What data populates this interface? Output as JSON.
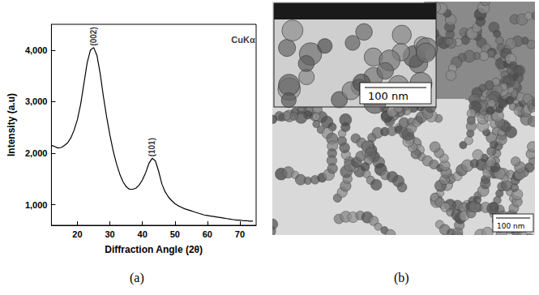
{
  "chart_data": {
    "type": "line",
    "panel_label": "(a)",
    "x_label": "Diffraction Angle (2θ)",
    "y_label": "Intensity (a.u)",
    "x": [
      12,
      13,
      14,
      15,
      16,
      17,
      18,
      19,
      20,
      21,
      22,
      23,
      24,
      25,
      26,
      27,
      28,
      29,
      30,
      31,
      32,
      33,
      34,
      35,
      36,
      37,
      38,
      39,
      40,
      41,
      42,
      43,
      44,
      45,
      46,
      47,
      48,
      49,
      50,
      51,
      52,
      53,
      54,
      55,
      56,
      57,
      58,
      59,
      60,
      61,
      62,
      63,
      64,
      65,
      66,
      67,
      68,
      69,
      70,
      71,
      72,
      73,
      74
    ],
    "values": [
      2150,
      2130,
      2100,
      2110,
      2150,
      2200,
      2300,
      2450,
      2650,
      2950,
      3350,
      3750,
      4000,
      4050,
      3900,
      3550,
      3100,
      2700,
      2350,
      2050,
      1800,
      1600,
      1450,
      1350,
      1300,
      1300,
      1320,
      1380,
      1480,
      1620,
      1800,
      1900,
      1850,
      1650,
      1400,
      1250,
      1150,
      1080,
      1020,
      980,
      950,
      920,
      900,
      880,
      860,
      840,
      820,
      800,
      790,
      780,
      770,
      760,
      750,
      740,
      730,
      720,
      710,
      700,
      700,
      690,
      690,
      680,
      680
    ],
    "color": "#000000",
    "xlim": [
      12,
      75
    ],
    "xticks": [
      20,
      30,
      40,
      50,
      60,
      70
    ],
    "ylim": [
      600,
      4500
    ],
    "yticks": [
      1000,
      2000,
      3000,
      4000
    ],
    "grid": false,
    "peak_labels": [
      {
        "text": "(002)",
        "x": 25,
        "y": 4050
      },
      {
        "text": "(101)",
        "x": 43,
        "y": 1900
      }
    ],
    "annotations": [
      {
        "text": "CuKα",
        "x": 71,
        "y": 4200
      }
    ]
  },
  "image_panel": {
    "panel_label": "(b)",
    "scale_bars": [
      "100 nm",
      "100 nm"
    ]
  }
}
